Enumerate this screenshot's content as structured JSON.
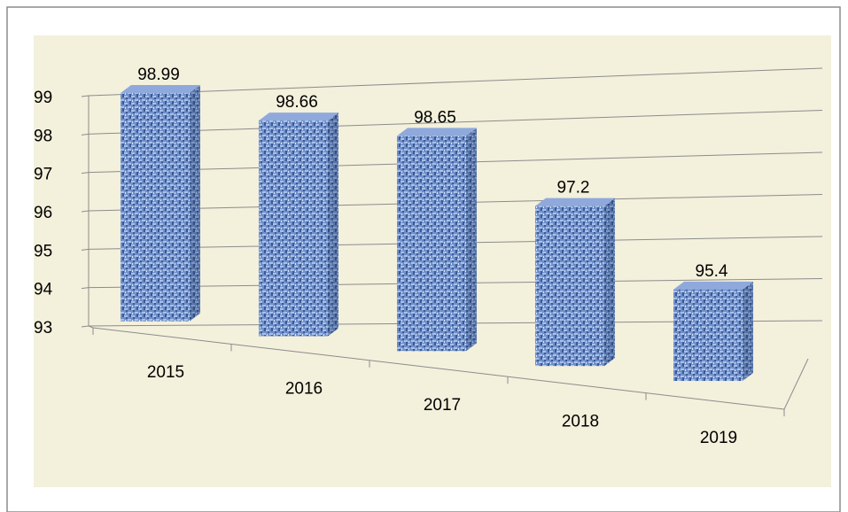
{
  "chart_data": {
    "type": "bar",
    "categories": [
      "2015",
      "2016",
      "2017",
      "2018",
      "2019"
    ],
    "values": [
      98.99,
      98.66,
      98.65,
      97.2,
      95.4
    ],
    "color": "#6f8fc9",
    "ylim": [
      93,
      99
    ],
    "yticks": [
      93,
      94,
      95,
      96,
      97,
      98,
      99
    ],
    "grid": true
  }
}
